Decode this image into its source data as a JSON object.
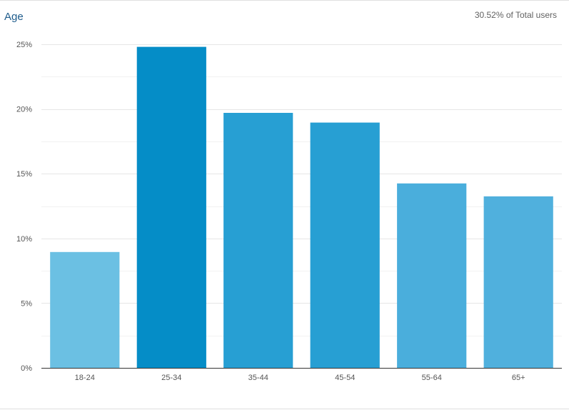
{
  "header": {
    "title": "Age",
    "subtitle": "30.52% of Total users"
  },
  "chart_data": {
    "type": "bar",
    "title": "Age",
    "categories": [
      "18-24",
      "25-34",
      "35-44",
      "45-54",
      "55-64",
      "65+"
    ],
    "values": [
      8.95,
      24.8,
      19.7,
      18.95,
      14.25,
      13.25
    ],
    "unit": "%",
    "ylim": [
      0,
      25
    ],
    "yticks": [
      0,
      5,
      10,
      15,
      20,
      25
    ],
    "ytick_labels": [
      "0%",
      "5%",
      "10%",
      "15%",
      "20%",
      "25%"
    ],
    "grid": true,
    "legend": "none",
    "bar_colors": [
      "#6bc0e3",
      "#058dc7",
      "#279fd3",
      "#279fd3",
      "#4aaedc",
      "#50b0dd"
    ]
  }
}
